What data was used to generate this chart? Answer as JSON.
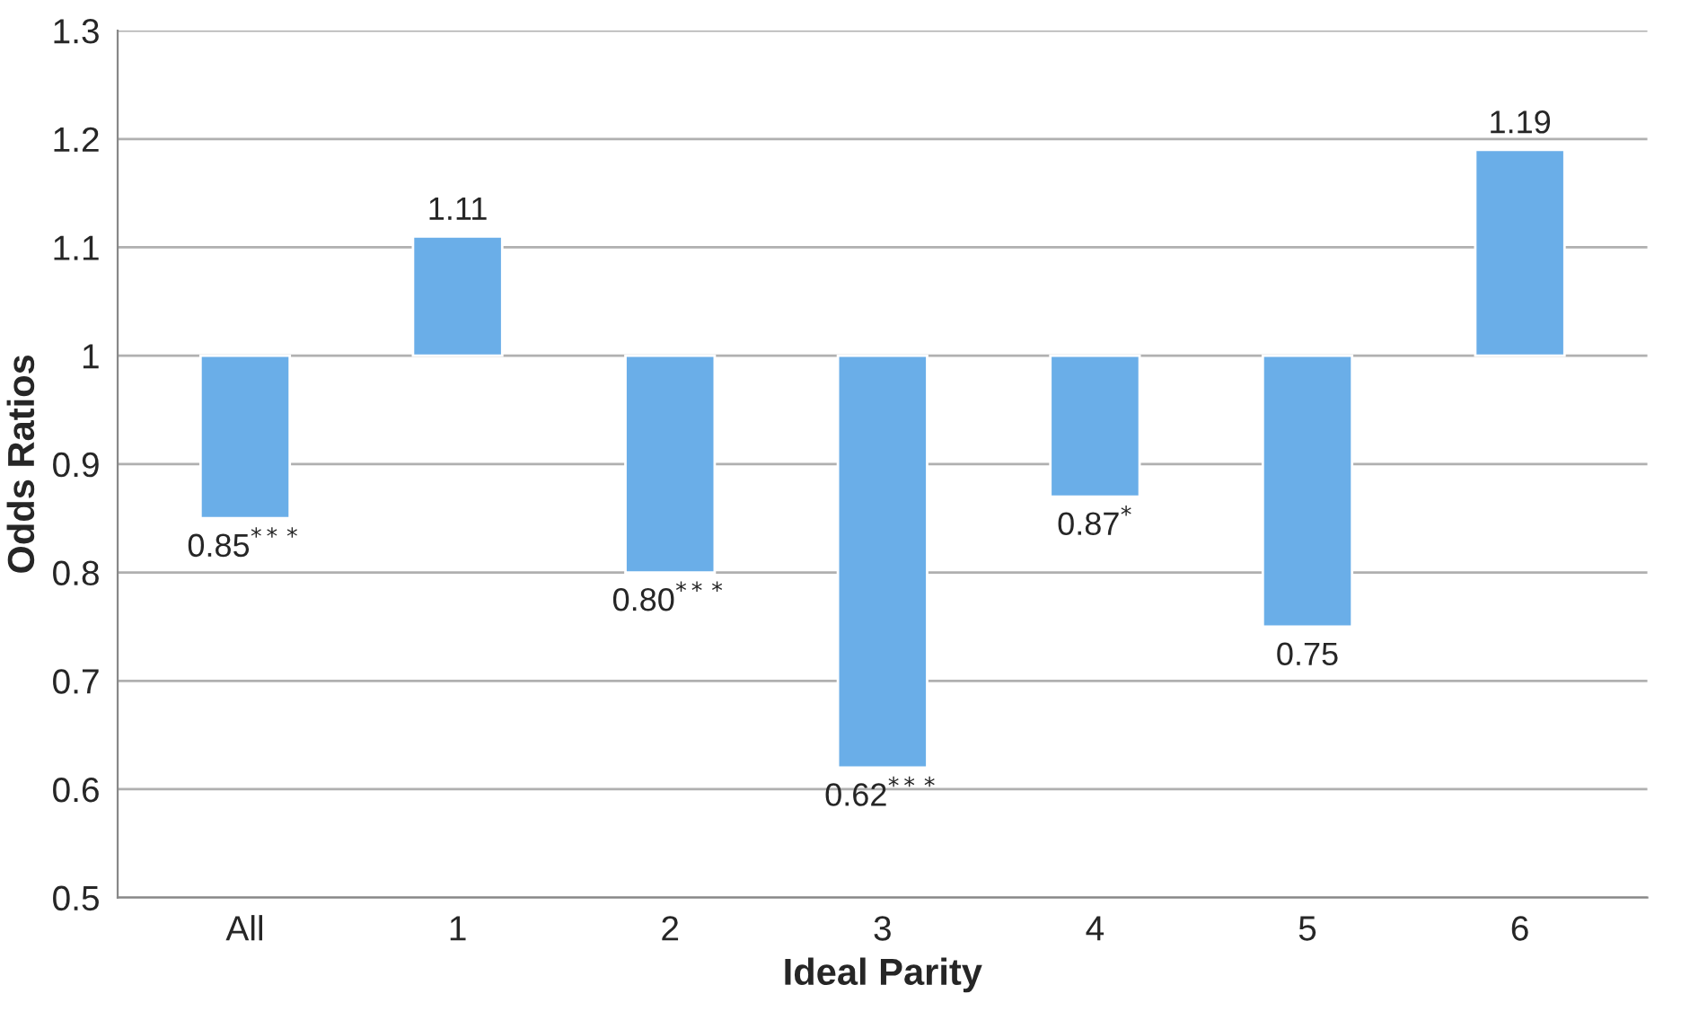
{
  "chart_data": {
    "type": "bar",
    "xlabel": "Ideal Parity",
    "ylabel": "Odds Ratios",
    "categories": [
      "All",
      "1",
      "2",
      "3",
      "4",
      "5",
      "6"
    ],
    "base": [
      1,
      1,
      1,
      1,
      1,
      1,
      1
    ],
    "values": [
      -0.15,
      0.11,
      -0.2,
      -0.38,
      -0.13,
      -0.25,
      0.19
    ],
    "value_labels": [
      "0.85$^{***}$",
      "1.11",
      "0.80$^{***}$",
      "0.62$^{***}$",
      "0.87$^{*}$",
      "0.75",
      "1.19"
    ],
    "color": "#6aaee8",
    "ylim": [
      0.5,
      1.3
    ],
    "yticks": [
      0.5,
      0.6,
      0.7,
      0.8,
      0.9,
      1,
      1.1,
      1.2,
      1.3
    ],
    "grid": "y"
  }
}
